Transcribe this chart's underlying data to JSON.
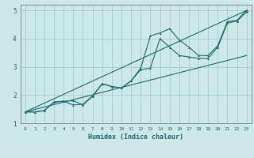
{
  "title": "",
  "xlabel": "Humidex (Indice chaleur)",
  "bg_color": "#cce8e8",
  "grid_color": "#aacccc",
  "line_color": "#1a6b6b",
  "xlim": [
    -0.5,
    23.5
  ],
  "ylim": [
    1.0,
    5.2
  ],
  "yticks": [
    1,
    2,
    3,
    4,
    5
  ],
  "xticks": [
    0,
    1,
    2,
    3,
    4,
    5,
    6,
    7,
    8,
    9,
    10,
    11,
    12,
    13,
    14,
    15,
    16,
    17,
    18,
    19,
    20,
    21,
    22,
    23
  ],
  "line1_x": [
    0,
    1,
    2,
    3,
    4,
    5,
    6,
    7,
    8,
    9,
    10,
    11,
    12,
    13,
    14,
    15,
    16,
    17,
    18,
    19,
    20,
    21,
    22,
    23
  ],
  "line1_y": [
    1.4,
    1.4,
    1.45,
    1.75,
    1.78,
    1.8,
    1.65,
    1.95,
    2.4,
    2.3,
    2.25,
    2.5,
    2.95,
    4.1,
    4.2,
    4.35,
    3.95,
    3.7,
    3.4,
    3.4,
    3.75,
    4.6,
    4.65,
    5.0
  ],
  "line2_x": [
    0,
    1,
    2,
    3,
    4,
    5,
    6,
    7,
    8,
    9,
    10,
    11,
    12,
    13,
    14,
    15,
    16,
    17,
    18,
    19,
    20,
    21,
    22,
    23
  ],
  "line2_y": [
    1.4,
    1.4,
    1.45,
    1.75,
    1.78,
    1.65,
    1.67,
    1.97,
    2.4,
    2.3,
    2.25,
    2.5,
    2.9,
    2.95,
    4.0,
    3.7,
    3.4,
    3.35,
    3.3,
    3.3,
    3.7,
    4.55,
    4.62,
    4.95
  ],
  "line3_x": [
    0,
    23
  ],
  "line3_y": [
    1.4,
    5.0
  ],
  "line4_x": [
    0,
    23
  ],
  "line4_y": [
    1.4,
    3.4
  ]
}
